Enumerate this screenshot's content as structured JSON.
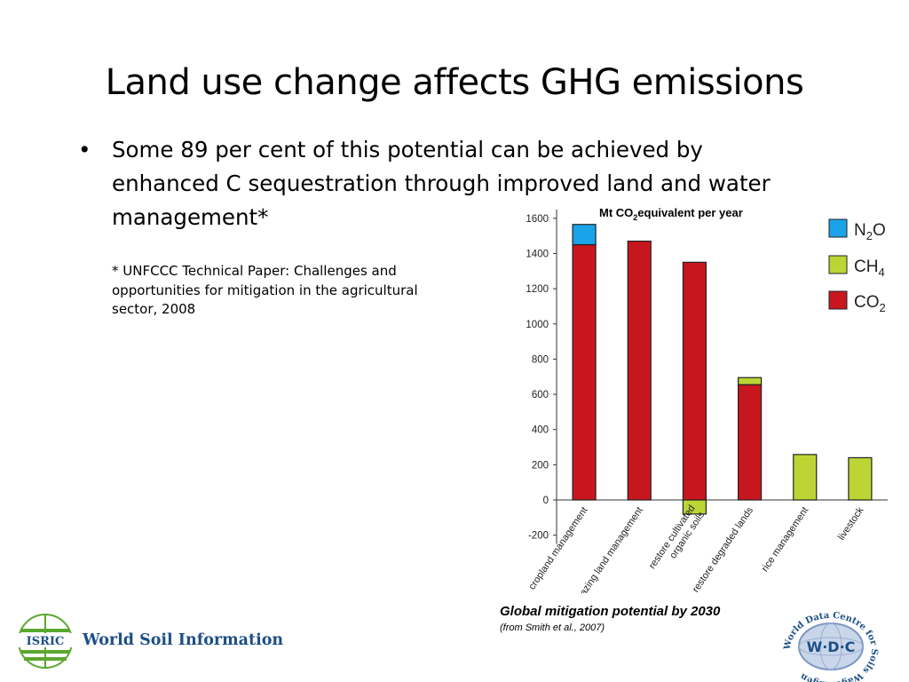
{
  "slide": {
    "title": "Land use change affects GHG emissions",
    "bullet_symbol": "•",
    "bullet_text": "Some 89 per cent of this potential can be achieved by\nenhanced C sequestration through improved land and water\nmanagement*",
    "footnote": "*  UNFCCC Technical Paper: Challenges and\n   opportunities for  mitigation in the agricultural\n   sector, 2008",
    "caption_main": "Global mitigation potential by 2030",
    "caption_source": "(from Smith et al., 2007)",
    "logo_left_abbr": "ISRIC",
    "logo_left_text": "World Soil Information",
    "logo_right_abbr": "W·D·C",
    "logo_right_ring_text": "World Data Centre for Soils Wageningen"
  },
  "chart_data": {
    "type": "bar",
    "stacked": true,
    "title": "Mt CO2equivalent per year",
    "title_parts": {
      "pre": "Mt CO",
      "sub": "2",
      "post": "equivalent per year"
    },
    "categories": [
      "cropland management",
      "grazing land management",
      "restore cultivated organic soils",
      "restore degraded lands",
      "rice management",
      "livestock"
    ],
    "category_label_lines": [
      [
        "cropland management"
      ],
      [
        "grazing land management"
      ],
      [
        "restore cultivated",
        "organic soils"
      ],
      [
        "restore degraded lands"
      ],
      [
        "rice management"
      ],
      [
        "livestock"
      ]
    ],
    "series": [
      {
        "name": "CO2",
        "label_base": "CO",
        "label_sub": "2",
        "color": "#c8161f",
        "values": [
          1450,
          1470,
          1350,
          655,
          0,
          0
        ]
      },
      {
        "name": "CH4",
        "label_base": "CH",
        "label_sub": "4",
        "color": "#bcd535",
        "values": [
          0,
          0,
          -80,
          40,
          258,
          240
        ]
      },
      {
        "name": "N2O",
        "label_base": "N",
        "label_sub": "2",
        "label_post": "O",
        "color": "#1aa3e8",
        "values": [
          115,
          0,
          0,
          0,
          0,
          0
        ]
      }
    ],
    "legend_order": [
      "N2O",
      "CH4",
      "CO2"
    ],
    "legend_position": "top-right",
    "ylim": [
      -250,
      1650
    ],
    "yticks": [
      -200,
      0,
      200,
      400,
      600,
      800,
      1000,
      1200,
      1400,
      1600
    ],
    "xlabel": "",
    "ylabel": "",
    "grid": false
  },
  "colors": {
    "bar_outline": "#222222",
    "axis": "#333333",
    "isric_blue": "#1d4f86",
    "isric_green": "#5aa82e"
  }
}
